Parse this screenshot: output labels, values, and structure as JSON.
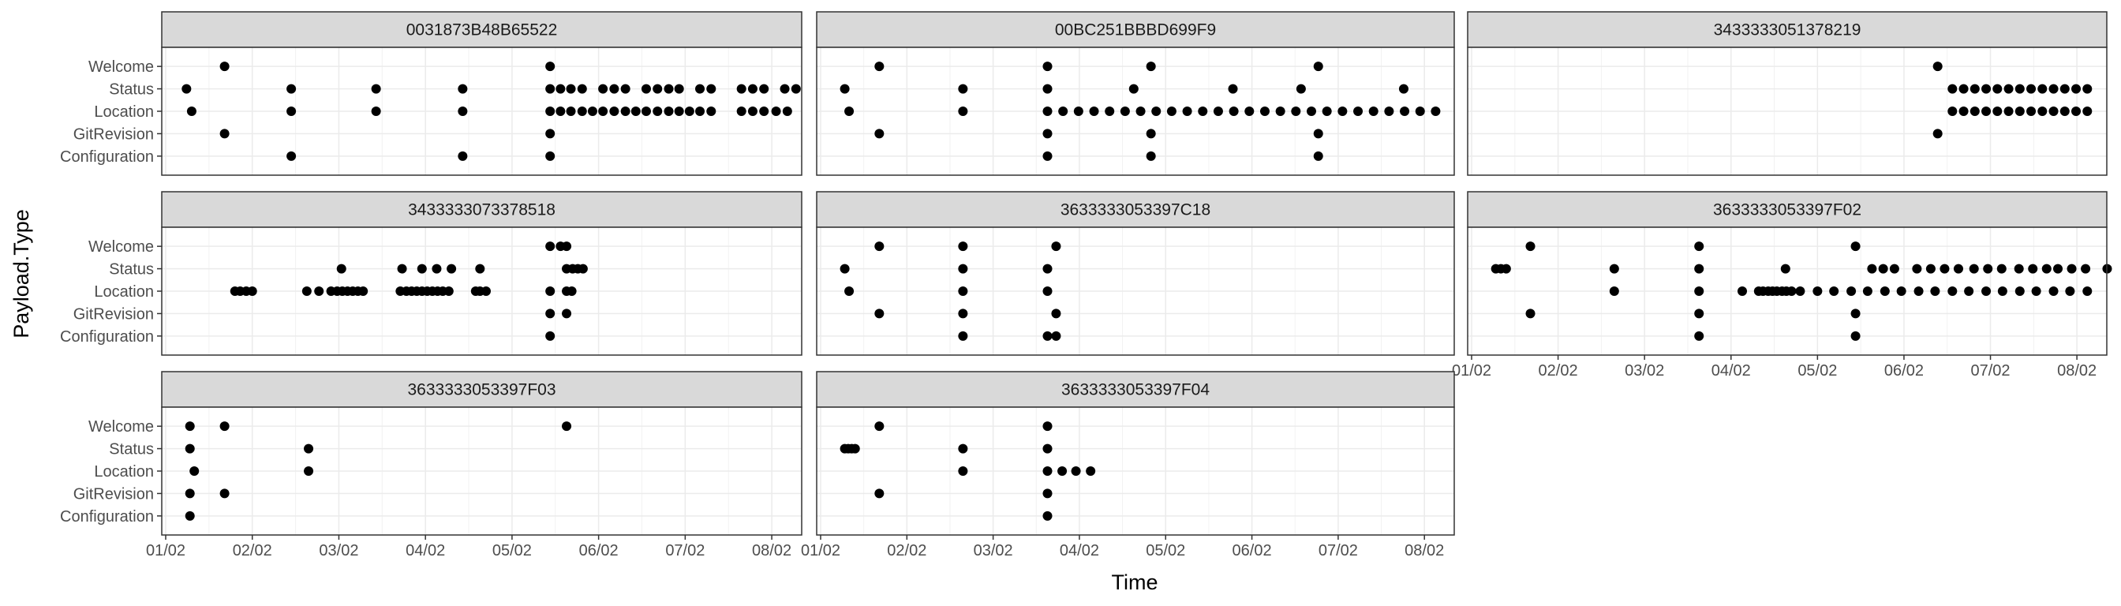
{
  "chart_data": {
    "type": "scatter",
    "xlabel": "Time",
    "ylabel": "Payload.Type",
    "y_categories": [
      "Welcome",
      "Status",
      "Location",
      "GitRevision",
      "Configuration"
    ],
    "x_ticks": [
      "01/02",
      "02/02",
      "03/02",
      "04/02",
      "05/02",
      "06/02",
      "07/02",
      "08/02"
    ],
    "x_domain_months": [
      0.0,
      7.3
    ],
    "grid": true,
    "legend": "none",
    "point_color": "#000000",
    "panels": [
      {
        "title": "0031873B48B65522",
        "points": {
          "Welcome": [
            0.68,
            4.44
          ],
          "Status": [
            0.24,
            1.45,
            2.43,
            3.43,
            4.44,
            4.56,
            4.68,
            4.81,
            5.05,
            5.18,
            5.31,
            5.55,
            5.68,
            5.81,
            5.93,
            6.17,
            6.3,
            6.65,
            6.78,
            6.91,
            7.15,
            7.28
          ],
          "Location": [
            0.3,
            1.45,
            2.43,
            3.43,
            4.44,
            4.56,
            4.68,
            4.81,
            4.93,
            5.05,
            5.18,
            5.31,
            5.43,
            5.55,
            5.68,
            5.81,
            5.93,
            6.05,
            6.17,
            6.3,
            6.65,
            6.78,
            6.91,
            7.05,
            7.18
          ],
          "GitRevision": [
            0.68,
            4.44
          ],
          "Configuration": [
            1.45,
            3.43,
            4.44
          ]
        }
      },
      {
        "title": "00BC251BBBD699F9",
        "points": {
          "Welcome": [
            0.68,
            2.63,
            3.83,
            5.77
          ],
          "Status": [
            0.28,
            1.65,
            2.63,
            3.63,
            4.78,
            5.57,
            6.76
          ],
          "Location": [
            0.33,
            1.65,
            2.63,
            2.81,
            2.99,
            3.17,
            3.35,
            3.53,
            3.71,
            3.89,
            4.07,
            4.25,
            4.43,
            4.61,
            4.79,
            4.97,
            5.15,
            5.33,
            5.51,
            5.69,
            5.87,
            6.05,
            6.23,
            6.41,
            6.59,
            6.77,
            6.95,
            7.13
          ],
          "GitRevision": [
            0.68,
            2.63,
            3.83,
            5.77
          ],
          "Configuration": [
            2.63,
            3.83,
            5.77
          ]
        }
      },
      {
        "title": "3433333051378219",
        "points": {
          "Welcome": [
            5.39
          ],
          "Status": [
            5.56,
            5.69,
            5.82,
            5.95,
            6.08,
            6.21,
            6.34,
            6.47,
            6.6,
            6.73,
            6.86,
            6.99,
            7.12
          ],
          "Location": [
            5.56,
            5.69,
            5.82,
            5.95,
            6.08,
            6.21,
            6.34,
            6.47,
            6.6,
            6.73,
            6.86,
            6.99,
            7.12
          ],
          "GitRevision": [
            5.39
          ],
          "Configuration": []
        }
      },
      {
        "title": "3433333073378518",
        "points": {
          "Welcome": [
            4.44,
            4.56,
            4.63
          ],
          "Status": [
            2.03,
            2.73,
            2.96,
            3.13,
            3.3,
            3.63,
            4.63,
            4.7,
            4.76,
            4.82
          ],
          "Location": [
            0.8,
            0.86,
            0.93,
            1.0,
            1.63,
            1.77,
            1.91,
            1.98,
            2.04,
            2.1,
            2.16,
            2.22,
            2.28,
            2.71,
            2.78,
            2.84,
            2.9,
            2.96,
            3.02,
            3.08,
            3.14,
            3.2,
            3.27,
            3.58,
            3.63,
            3.7,
            4.44,
            4.63,
            4.69
          ],
          "GitRevision": [
            4.44,
            4.63
          ],
          "Configuration": [
            4.44
          ]
        }
      },
      {
        "title": "3633333053397C18",
        "points": {
          "Welcome": [
            0.68,
            1.65,
            2.73
          ],
          "Status": [
            0.28,
            1.65,
            2.63
          ],
          "Location": [
            0.33,
            1.65,
            2.63
          ],
          "GitRevision": [
            0.68,
            1.65,
            2.73
          ],
          "Configuration": [
            1.65,
            2.63,
            2.73
          ]
        }
      },
      {
        "title": "3633333053397F02",
        "points": {
          "Welcome": [
            0.68,
            2.63,
            4.44
          ],
          "Status": [
            0.28,
            0.34,
            0.4,
            1.65,
            2.63,
            3.63,
            4.63,
            4.76,
            4.89,
            5.15,
            5.31,
            5.47,
            5.63,
            5.81,
            5.97,
            6.13,
            6.33,
            6.49,
            6.65,
            6.78,
            6.94,
            7.1,
            7.35
          ],
          "Location": [
            1.65,
            2.63,
            3.13,
            3.32,
            3.37,
            3.43,
            3.48,
            3.53,
            3.59,
            3.64,
            3.7,
            3.8,
            4.0,
            4.19,
            4.39,
            4.58,
            4.78,
            4.97,
            5.17,
            5.36,
            5.56,
            5.75,
            5.95,
            6.14,
            6.34,
            6.53,
            6.73,
            6.92,
            7.12
          ],
          "GitRevision": [
            0.68,
            2.63,
            4.44
          ],
          "Configuration": [
            2.63,
            4.44
          ]
        }
      },
      {
        "title": "3633333053397F03",
        "points": {
          "Welcome": [
            0.28,
            0.68,
            4.63
          ],
          "Status": [
            0.28,
            1.65
          ],
          "Location": [
            0.33,
            1.65
          ],
          "GitRevision": [
            0.28,
            0.68
          ],
          "Configuration": [
            0.28
          ]
        }
      },
      {
        "title": "3633333053397F04",
        "points": {
          "Welcome": [
            0.68,
            2.63
          ],
          "Status": [
            0.28,
            0.32,
            0.36,
            0.4,
            1.65,
            2.63
          ],
          "Location": [
            1.65,
            2.63,
            2.8,
            2.96,
            3.13
          ],
          "GitRevision": [
            0.68,
            2.63
          ],
          "Configuration": [
            2.63
          ]
        }
      }
    ]
  }
}
